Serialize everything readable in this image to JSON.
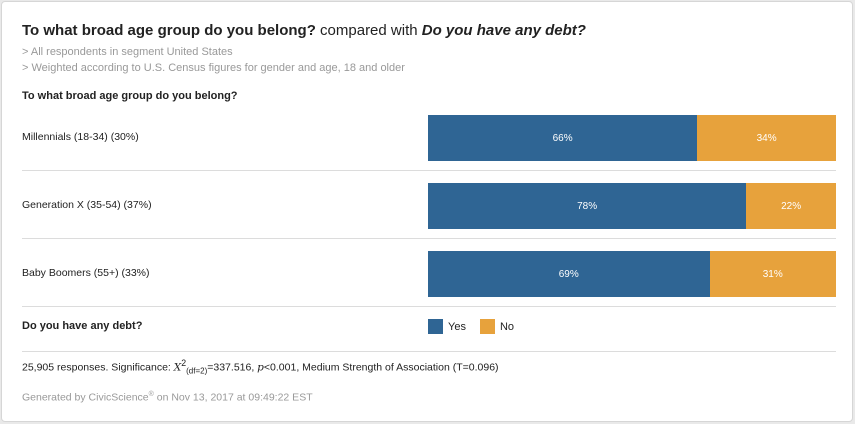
{
  "title": {
    "q1": "To what broad age group do you belong?",
    "mid": " compared with ",
    "q2": "Do you have any debt?"
  },
  "filters": [
    "> All respondents in segment United States",
    "> Weighted according to U.S. Census figures for gender and age, 18 and older"
  ],
  "row_question": "To what broad age group do you belong?",
  "column_question": "Do you have any debt?",
  "chart_data": {
    "type": "bar",
    "orientation": "horizontal",
    "stacked": true,
    "normalized": "percent",
    "categories": [
      "Millennials (18-34) (30%)",
      "Generation X (35-54) (37%)",
      "Baby Boomers (55+) (33%)"
    ],
    "series": [
      {
        "name": "Yes",
        "color": "#2f6594",
        "values": [
          66,
          78,
          69
        ],
        "labels": [
          "66%",
          "78%",
          "69%"
        ]
      },
      {
        "name": "No",
        "color": "#e7a23c",
        "values": [
          34,
          22,
          31
        ],
        "labels": [
          "34%",
          "22%",
          "31%"
        ]
      }
    ],
    "xlim": [
      0,
      100
    ],
    "legend": "bottom"
  },
  "footnote": {
    "responses": "25,905 responses. Significance: ",
    "chi": "X",
    "chi_sup": "2",
    "chi_sub": "(df=2)",
    "chi_value": "=337.516, ",
    "p": "p",
    "p_value": "<0.001, Medium Strength of Association (T=0.096)"
  },
  "generated": {
    "prefix": "Generated by CivicScience",
    "mark": "®",
    "suffix": " on Nov 13, 2017 at 09:49:22 EST"
  }
}
